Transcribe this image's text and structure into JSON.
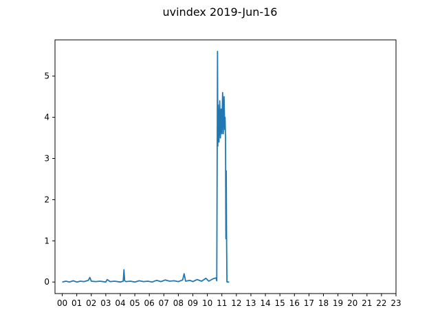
{
  "chart_data": {
    "type": "line",
    "title": "uvindex 2019-Jun-16",
    "xlabel": "",
    "ylabel": "",
    "x_unit": "hour",
    "xlim": [
      -0.5,
      23
    ],
    "ylim": [
      -0.28,
      5.88
    ],
    "x_ticks": [
      "00",
      "01",
      "02",
      "03",
      "04",
      "05",
      "06",
      "07",
      "08",
      "09",
      "10",
      "11",
      "12",
      "13",
      "14",
      "15",
      "16",
      "17",
      "18",
      "19",
      "20",
      "21",
      "22",
      "23"
    ],
    "y_ticks": [
      0,
      1,
      2,
      3,
      4,
      5
    ],
    "grid": false,
    "legend": "none",
    "series": [
      {
        "color": "#1f77b4",
        "x": [
          0.0,
          0.25,
          0.5,
          0.75,
          1.0,
          1.25,
          1.5,
          1.8,
          1.9,
          2.0,
          2.3,
          2.6,
          3.0,
          3.1,
          3.3,
          3.6,
          4.0,
          4.2,
          4.25,
          4.3,
          4.4,
          4.7,
          5.0,
          5.3,
          5.6,
          5.9,
          6.2,
          6.5,
          6.8,
          7.1,
          7.4,
          7.7,
          8.0,
          8.3,
          8.4,
          8.5,
          8.8,
          9.0,
          9.3,
          9.6,
          9.9,
          10.1,
          10.4,
          10.6,
          10.65,
          10.7,
          10.72,
          10.75,
          10.8,
          10.85,
          10.9,
          10.95,
          11.0,
          11.05,
          11.1,
          11.15,
          11.2,
          11.22,
          11.25,
          11.28,
          11.3,
          11.32,
          11.35,
          11.4,
          11.5
        ],
        "y": [
          0.0,
          0.02,
          0.0,
          0.03,
          0.0,
          0.02,
          0.01,
          0.04,
          0.11,
          0.02,
          0.01,
          0.02,
          0.0,
          0.06,
          0.01,
          0.02,
          0.0,
          0.02,
          0.3,
          0.03,
          0.01,
          0.02,
          0.0,
          0.03,
          0.01,
          0.02,
          0.0,
          0.04,
          0.01,
          0.05,
          0.02,
          0.03,
          0.01,
          0.05,
          0.2,
          0.02,
          0.04,
          0.01,
          0.06,
          0.02,
          0.09,
          0.02,
          0.08,
          0.1,
          0.03,
          5.6,
          3.3,
          4.3,
          3.4,
          4.4,
          3.5,
          4.2,
          3.6,
          4.6,
          3.6,
          4.5,
          3.7,
          4.0,
          3.5,
          1.05,
          2.7,
          1.2,
          0.0,
          0.0,
          0.0
        ]
      }
    ]
  }
}
